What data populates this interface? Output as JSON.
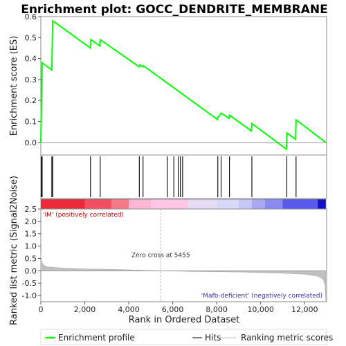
{
  "chart_data": {
    "type": "line",
    "title": "Enrichment plot: GOCC_DENDRITE_MEMBRANE",
    "top_panel": {
      "ylabel": "Enrichment score (ES)",
      "ylim": [
        -0.06,
        0.6
      ],
      "yticks": [
        "0.0",
        "0.1",
        "0.2",
        "0.3",
        "0.4",
        "0.5",
        "0.6"
      ],
      "ytick_values": [
        0.0,
        0.1,
        0.2,
        0.3,
        0.4,
        0.5,
        0.6
      ],
      "line_color": "#00ff00",
      "series": [
        {
          "x": 0,
          "y": 0.0
        },
        {
          "x": 60,
          "y": 0.38
        },
        {
          "x": 500,
          "y": 0.345
        },
        {
          "x": 520,
          "y": 0.46
        },
        {
          "x": 540,
          "y": 0.58
        },
        {
          "x": 2260,
          "y": 0.45
        },
        {
          "x": 2280,
          "y": 0.49
        },
        {
          "x": 2680,
          "y": 0.46
        },
        {
          "x": 2700,
          "y": 0.49
        },
        {
          "x": 4480,
          "y": 0.36
        },
        {
          "x": 4500,
          "y": 0.37
        },
        {
          "x": 4650,
          "y": 0.36
        },
        {
          "x": 4670,
          "y": 0.365
        },
        {
          "x": 8030,
          "y": 0.11
        },
        {
          "x": 8050,
          "y": 0.12
        },
        {
          "x": 8150,
          "y": 0.13
        },
        {
          "x": 8200,
          "y": 0.14
        },
        {
          "x": 8560,
          "y": 0.115
        },
        {
          "x": 8580,
          "y": 0.13
        },
        {
          "x": 9580,
          "y": 0.055
        },
        {
          "x": 9600,
          "y": 0.09
        },
        {
          "x": 11170,
          "y": -0.032
        },
        {
          "x": 11190,
          "y": 0.045
        },
        {
          "x": 11590,
          "y": 0.015
        },
        {
          "x": 11610,
          "y": 0.108
        },
        {
          "x": 12960,
          "y": 0.0
        }
      ]
    },
    "hits_panel": {
      "hit_positions": [
        30,
        60,
        500,
        540,
        2260,
        2700,
        4480,
        4650,
        5750,
        6050,
        6250,
        6350,
        6450,
        8050,
        8200,
        8580,
        9600,
        11190,
        11610
      ]
    },
    "rank_panel": {
      "ylabel": "Ranked list metric (Signal2Noise)",
      "xlabel": "Rank in Ordered Dataset",
      "ylim": [
        -1.25,
        2.5
      ],
      "yticks": [
        "-1.0",
        "-0.5",
        "0.0",
        "0.5",
        "1.0",
        "1.5",
        "2.0",
        "2.5"
      ],
      "ytick_values": [
        -1.0,
        -0.5,
        0.0,
        0.5,
        1.0,
        1.5,
        2.0,
        2.5
      ],
      "xlim": [
        0,
        13000
      ],
      "xticks": [
        "0",
        "2,000",
        "4,000",
        "6,000",
        "8,000",
        "10,000",
        "12,000"
      ],
      "xtick_values": [
        0,
        2000,
        4000,
        6000,
        8000,
        10000,
        12000
      ],
      "fill_color": "#c0c0c0",
      "metric_profile": [
        {
          "x": 0,
          "y": 0.7
        },
        {
          "x": 30,
          "y": 0.4
        },
        {
          "x": 100,
          "y": 0.25
        },
        {
          "x": 300,
          "y": 0.16
        },
        {
          "x": 1000,
          "y": 0.11
        },
        {
          "x": 2000,
          "y": 0.08
        },
        {
          "x": 3500,
          "y": 0.05
        },
        {
          "x": 5455,
          "y": 0.0
        },
        {
          "x": 7000,
          "y": -0.03
        },
        {
          "x": 9000,
          "y": -0.05
        },
        {
          "x": 11000,
          "y": -0.1
        },
        {
          "x": 12000,
          "y": -0.14
        },
        {
          "x": 12600,
          "y": -0.22
        },
        {
          "x": 12850,
          "y": -0.35
        },
        {
          "x": 12930,
          "y": -0.6
        },
        {
          "x": 12960,
          "y": -1.25
        }
      ],
      "zero_cross_rank": 5455,
      "zero_cross_label": "Zero cross at 5455",
      "pos_label": "'IM' (positively correlated)",
      "neg_label": "'Mafb-deficient' (negatively correlated)",
      "pos_color": "#ff0000",
      "neg_color": "#0000cc"
    },
    "x_max_rank": 12960,
    "heat_stops": [
      {
        "x": 0,
        "color": "#ee2a3a"
      },
      {
        "x": 2000,
        "color": "#f05060"
      },
      {
        "x": 3200,
        "color": "#f57a88"
      },
      {
        "x": 4000,
        "color": "#fbb6d4"
      },
      {
        "x": 5000,
        "color": "#fcc6e4"
      },
      {
        "x": 6700,
        "color": "#e6dcf6"
      },
      {
        "x": 8000,
        "color": "#d8d8f8"
      },
      {
        "x": 9000,
        "color": "#c8c8f8"
      },
      {
        "x": 9600,
        "color": "#a8a8f4"
      },
      {
        "x": 10200,
        "color": "#8a8af0"
      },
      {
        "x": 11000,
        "color": "#5a5aea"
      },
      {
        "x": 12600,
        "color": "#1010cc"
      },
      {
        "x": 12960,
        "color": "#0a0aa8"
      }
    ],
    "legend": [
      {
        "label": "Enrichment profile",
        "color": "#00ff00"
      },
      {
        "label": "Hits",
        "color": "#000000"
      },
      {
        "label": "Ranking metric scores",
        "color": "#c0c0c0"
      }
    ]
  }
}
